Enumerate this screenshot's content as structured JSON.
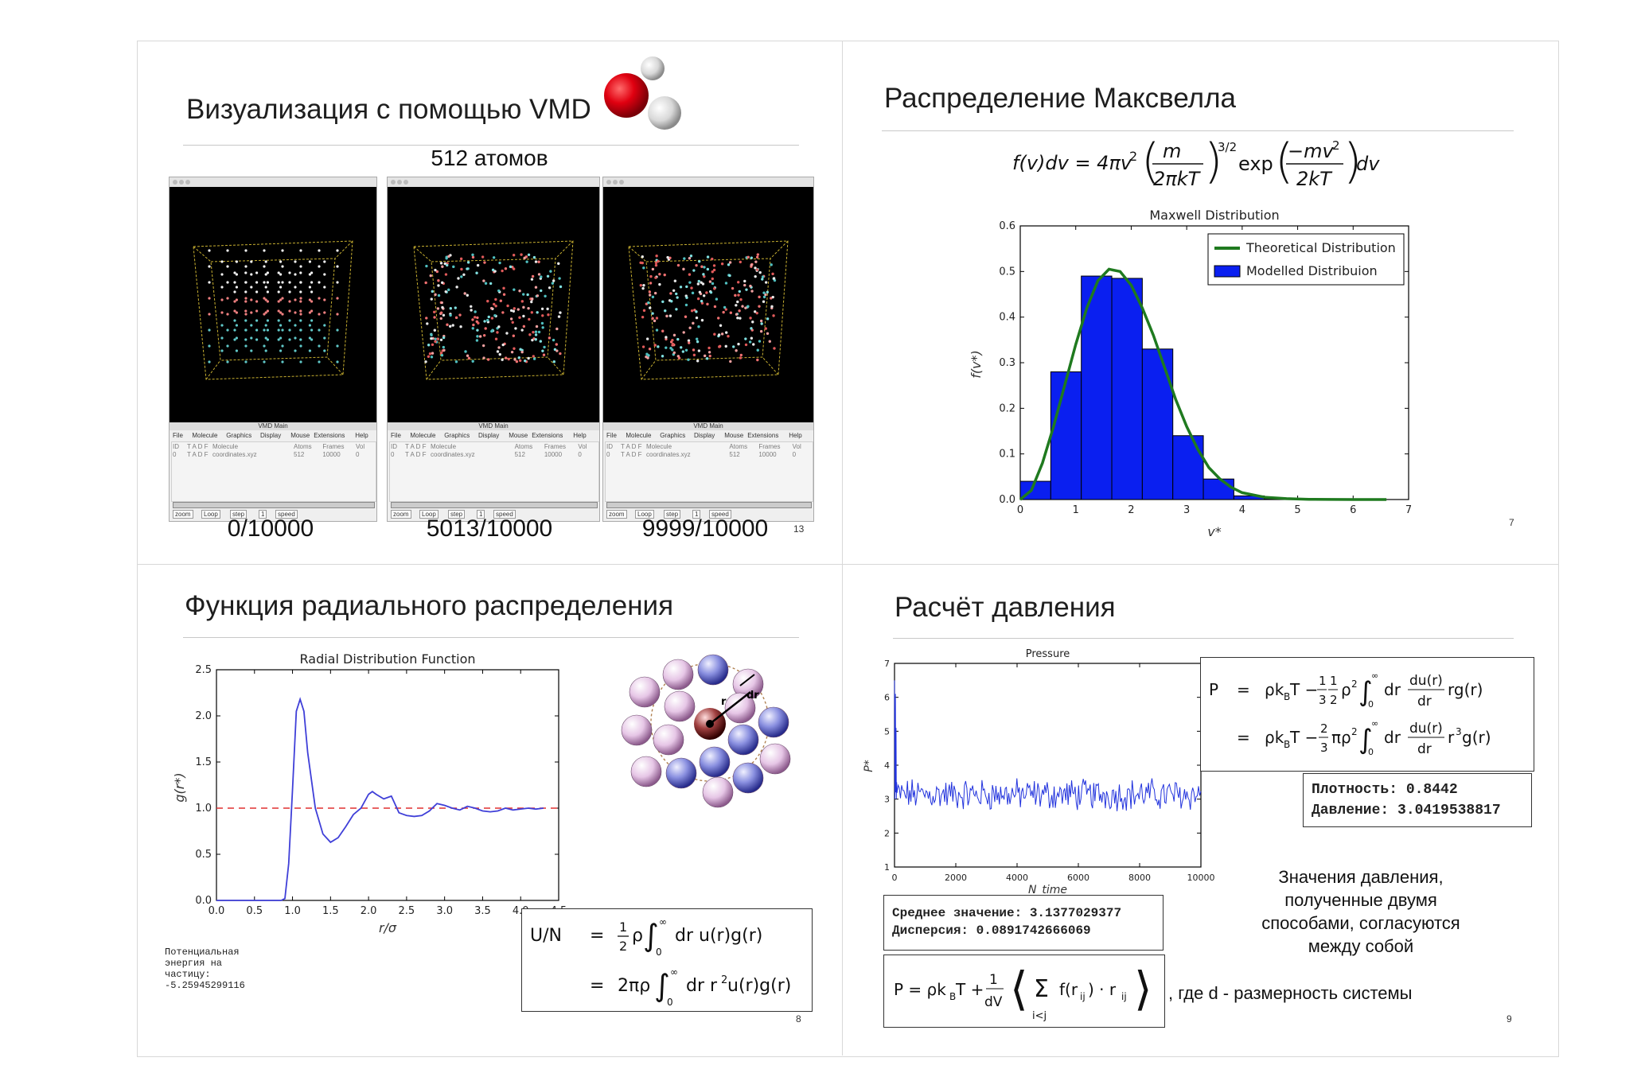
{
  "slides": {
    "vmd": {
      "title": "Визуализация с помощью VMD",
      "subtitle": "512 атомов",
      "captions": [
        "0/10000",
        "5013/10000",
        "9999/10000"
      ],
      "page": "13",
      "window_title": "VMD Main",
      "menu": [
        "File",
        "Molecule",
        "Graphics",
        "Display",
        "Mouse",
        "Extensions",
        "Help"
      ],
      "table_headers": [
        "ID",
        "T A D F",
        "Molecule",
        "Atoms",
        "Frames",
        "Vol"
      ],
      "rows": [
        [
          "0",
          "T A D F",
          "coordinates.xyz",
          "512",
          "10000",
          "0"
        ],
        [
          "0",
          "T A D F",
          "coordinates.xyz",
          "512",
          "10000",
          "0"
        ],
        [
          "0",
          "T A D F",
          "coordinates.xyz",
          "512",
          "10000",
          "0"
        ]
      ],
      "controls": [
        "zoom",
        "Loop",
        "step",
        "1",
        "speed"
      ]
    },
    "maxwell": {
      "title": "Распределение Максвелла",
      "page": "7",
      "formula": "f(v)dv = 4πv² (m / 2πkT)^(3/2) exp(−mv² / 2kT) dv",
      "formula_parts": {
        "lhs": "f(v)dv = 4πv",
        "m": "m",
        "den1": "2πkT",
        "exp32": "3/2",
        "exp": "exp",
        "num2": "−mv",
        "den2": "2kT",
        "dv": "dv"
      }
    },
    "rdf": {
      "title": "Функция радиального распределения",
      "page": "8",
      "energy_label": "Потенциальная энергия на частицу: -5.25945299116",
      "formula": {
        "lhs": "U/N",
        "line1": "½ρ ∫₀^∞ dr u(r)g(r)",
        "line2": "2πρ ∫₀^∞ dr r²u(r)g(r)"
      },
      "diagram_labels": {
        "r": "r",
        "dr": "dr"
      }
    },
    "pressure": {
      "title": "Расчёт давления",
      "page": "9",
      "stats": [
        "Среднее значение: 3.1377029377",
        "Дисперсия: 0.0891742666069"
      ],
      "result": [
        "Плотность: 0.8442",
        "Давление: 3.0419538817"
      ],
      "note": [
        "Значения давления,",
        "полученные двумя",
        "способами, согласуются",
        "между собой"
      ],
      "virial_suffix": ", где d - размерность системы",
      "formula1": {
        "P": "P",
        "l1": "ρk_BT − (1/3)(1/2)ρ² ∫₀^∞ dr (du(r)/dr) r g(r)",
        "l2": "ρk_BT − (2/3)πρ² ∫₀^∞ dr (du(r)/dr) r³ g(r)"
      },
      "virial": "P = ρk_BT + (1/dV) ⟨ Σ_{i<j} f(r_ij)·r_ij ⟩"
    }
  },
  "chart_data": [
    {
      "type": "bar",
      "title": "Maxwell Distribution",
      "xlabel": "v*",
      "ylabel": "f(v*)",
      "xlim": [
        0,
        7
      ],
      "ylim": [
        0,
        0.6
      ],
      "xticks": [
        "0",
        "1",
        "2",
        "3",
        "4",
        "5",
        "6",
        "7"
      ],
      "yticks": [
        "0.0",
        "0.1",
        "0.2",
        "0.3",
        "0.4",
        "0.5",
        "0.6"
      ],
      "legend_position": "top-right",
      "legend": [
        "Theoretical Distribution",
        "Modelled Distribuion"
      ],
      "bar_color": "#0a1ff0",
      "line_color": "#1f7a1f",
      "bins": [
        {
          "x0": 0.0,
          "x1": 0.55,
          "value": 0.04
        },
        {
          "x0": 0.55,
          "x1": 1.1,
          "value": 0.28
        },
        {
          "x0": 1.1,
          "x1": 1.65,
          "value": 0.49
        },
        {
          "x0": 1.65,
          "x1": 2.2,
          "value": 0.485
        },
        {
          "x0": 2.2,
          "x1": 2.75,
          "value": 0.33
        },
        {
          "x0": 2.75,
          "x1": 3.3,
          "value": 0.14
        },
        {
          "x0": 3.3,
          "x1": 3.85,
          "value": 0.045
        },
        {
          "x0": 3.85,
          "x1": 4.4,
          "value": 0.008
        },
        {
          "x0": 4.4,
          "x1": 4.95,
          "value": 0.002
        },
        {
          "x0": 4.95,
          "x1": 5.5,
          "value": 0.001
        }
      ],
      "theory": {
        "x": [
          0,
          0.2,
          0.4,
          0.6,
          0.8,
          1.0,
          1.2,
          1.4,
          1.6,
          1.8,
          2.0,
          2.2,
          2.4,
          2.6,
          2.8,
          3.0,
          3.2,
          3.4,
          3.6,
          3.8,
          4.0,
          4.4,
          4.8,
          5.2,
          5.6,
          6.0,
          6.6
        ],
        "y": [
          0,
          0.02,
          0.08,
          0.16,
          0.25,
          0.34,
          0.42,
          0.48,
          0.505,
          0.5,
          0.47,
          0.42,
          0.36,
          0.29,
          0.22,
          0.16,
          0.11,
          0.07,
          0.045,
          0.027,
          0.015,
          0.005,
          0.002,
          0.0005,
          0.0002,
          0.0001,
          0
        ]
      }
    },
    {
      "type": "line",
      "title": "Radial Distribution Function",
      "xlabel": "r/σ",
      "ylabel": "g(r*)",
      "xlim": [
        0,
        4.5
      ],
      "ylim": [
        0,
        2.5
      ],
      "xticks": [
        "0.0",
        "0.5",
        "1.0",
        "1.5",
        "2.0",
        "2.5",
        "3.0",
        "3.5",
        "4.0",
        "4.5"
      ],
      "yticks": [
        "0.0",
        "0.5",
        "1.0",
        "1.5",
        "2.0",
        "2.5"
      ],
      "reference_line": 1.0,
      "line_color": "#3f3fd8",
      "ref_color": "#e03030",
      "x": [
        0,
        0.85,
        0.9,
        0.95,
        1.0,
        1.05,
        1.1,
        1.15,
        1.2,
        1.3,
        1.4,
        1.5,
        1.6,
        1.7,
        1.8,
        1.9,
        2.0,
        2.05,
        2.1,
        2.2,
        2.3,
        2.4,
        2.5,
        2.6,
        2.7,
        2.8,
        2.9,
        3.0,
        3.1,
        3.2,
        3.3,
        3.4,
        3.5,
        3.6,
        3.7,
        3.8,
        3.9,
        4.0,
        4.1,
        4.2,
        4.3
      ],
      "y": [
        0,
        0,
        0.02,
        0.4,
        1.2,
        2.05,
        2.18,
        2.05,
        1.6,
        1.0,
        0.72,
        0.63,
        0.68,
        0.8,
        0.93,
        1.0,
        1.15,
        1.18,
        1.15,
        1.1,
        1.13,
        0.95,
        0.92,
        0.91,
        0.92,
        0.97,
        1.05,
        1.03,
        1.0,
        0.98,
        1.02,
        1.0,
        0.97,
        0.96,
        0.97,
        1.0,
        0.98,
        0.99,
        1.0,
        0.99,
        1.0
      ]
    },
    {
      "type": "line",
      "title": "Pressure",
      "xlabel": "N_time",
      "ylabel": "P*",
      "xlim": [
        0,
        10000
      ],
      "ylim": [
        1,
        7
      ],
      "xticks": [
        "0",
        "2000",
        "4000",
        "6000",
        "8000",
        "10000"
      ],
      "yticks": [
        "1",
        "2",
        "3",
        "4",
        "5",
        "6",
        "7"
      ],
      "line_color": "#2233dd",
      "mean": 3.1377029377,
      "initial": [
        6.5,
        3.0,
        3.4,
        6.1,
        3.2,
        5.1,
        3.0,
        3.5
      ]
    }
  ]
}
